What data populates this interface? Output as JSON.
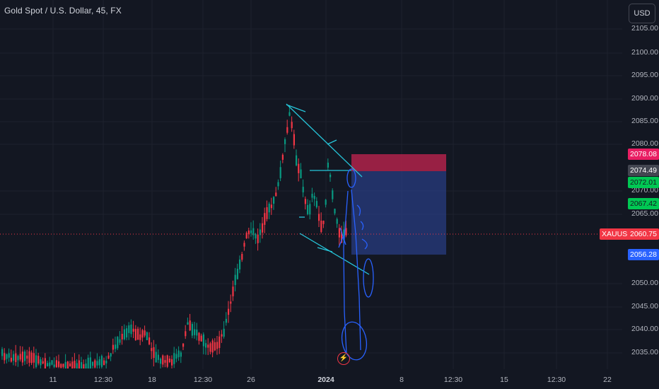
{
  "header": {
    "title": "Gold Spot / U.S. Dollar, 45, FX"
  },
  "currency_button": "USD",
  "price_axis": {
    "ticks": [
      "2105.00",
      "2100.00",
      "2095.00",
      "2090.00",
      "2085.00",
      "2080.00",
      "2070.00",
      "2065.00",
      "2050.00",
      "2045.00",
      "2040.00",
      "2035.00"
    ]
  },
  "badges": {
    "stop": {
      "value": "2078.08",
      "color": "#e91e63"
    },
    "entry": {
      "value": "2074.49",
      "color": "#434651"
    },
    "green1": {
      "value": "2072.01",
      "color": "#00c853"
    },
    "green2": {
      "value": "2067.42",
      "color": "#00c853"
    },
    "current": {
      "symbol": "XAUUSD",
      "value": "2060.75",
      "color": "#f23645"
    },
    "target": {
      "value": "2056.28",
      "color": "#2962ff"
    }
  },
  "time_axis": {
    "labels": [
      "11",
      "12:30",
      "18",
      "12:30",
      "26",
      "2024",
      "8",
      "12:30",
      "15",
      "12:30",
      "22"
    ]
  },
  "colors": {
    "up": "#089981",
    "down": "#f23645",
    "drawing": "#2962ff",
    "trendline": "#26c6da"
  },
  "chart_data": {
    "type": "candlestick",
    "symbol": "XAUUSD",
    "interval": "45",
    "ylim": [
      2032,
      2109
    ],
    "current_price": 2060.75,
    "position": {
      "type": "short",
      "entry": 2074.49,
      "stop": 2078.08,
      "target": 2056.28
    }
  }
}
